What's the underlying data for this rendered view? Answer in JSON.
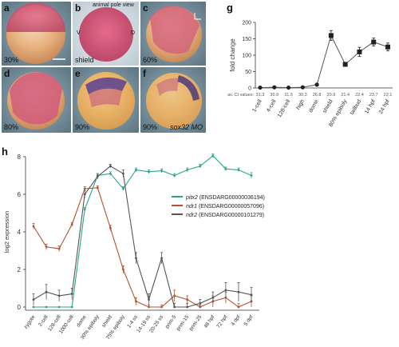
{
  "panels": {
    "a": {
      "letter": "a",
      "caption": "30%"
    },
    "b": {
      "letter": "b",
      "caption": "shield",
      "title": "animal pole view",
      "left_mark": "V",
      "right_mark": "D"
    },
    "c": {
      "letter": "c",
      "caption": "60%"
    },
    "d": {
      "letter": "d",
      "caption": "80%"
    },
    "e": {
      "letter": "e",
      "caption": "90%"
    },
    "f": {
      "letter": "f",
      "caption": "90%",
      "caption2": "sox32 MO"
    },
    "g_letter": "g",
    "h_letter": "h"
  },
  "chart_data": [
    {
      "type": "line",
      "panel": "g",
      "ylabel": "fold change",
      "ylim": [
        0,
        200
      ],
      "yticks": [
        0,
        50,
        100,
        150,
        200
      ],
      "categories": [
        "1-cell",
        "4-cell",
        "128-cell",
        "high",
        "dome",
        "shield",
        "80% epiboly",
        "tailbud",
        "14 hpf",
        "24 hpf"
      ],
      "values": [
        1,
        2,
        1,
        2,
        10,
        160,
        72,
        110,
        140,
        125
      ],
      "errors": [
        1,
        1,
        1,
        1,
        3,
        15,
        4,
        14,
        12,
        12
      ],
      "ct_label": "av. Ct values:",
      "ct_values": [
        "31.3",
        "30.9",
        "31.5",
        "30.3",
        "26.8",
        "20.9",
        "21.4",
        "22.4",
        "23.7",
        "22.1"
      ]
    },
    {
      "type": "line",
      "panel": "h",
      "ylabel": "log2 expression",
      "ylim": [
        0,
        8
      ],
      "yticks": [
        0,
        2,
        4,
        6,
        8
      ],
      "categories": [
        "zygote",
        "2-cell",
        "128-cell",
        "1000-cell",
        "dome",
        "30% epiboly",
        "shield",
        "75% epiboly",
        "1-4 ss",
        "14-19 ss",
        "20-25 ss",
        "prim-5",
        "prim-15",
        "prim-25",
        "48 hpf",
        "72 hpf",
        "4 dpf",
        "5 dpf"
      ],
      "series": [
        {
          "name": "pitx2",
          "id": "(ENSDARG00000036194)",
          "color": "#2aa58c",
          "values": [
            0,
            0,
            0,
            0,
            5.2,
            7.0,
            7.1,
            6.3,
            7.3,
            7.2,
            7.25,
            7.0,
            7.3,
            7.5,
            8.05,
            7.35,
            7.3,
            7.0
          ],
          "errors": [
            0,
            0,
            0,
            0,
            0.1,
            0.1,
            0.1,
            0.1,
            0.1,
            0.1,
            0.1,
            0.1,
            0.1,
            0.1,
            0.1,
            0.1,
            0.1,
            0.15
          ]
        },
        {
          "name": "ndr1",
          "id": "(ENSDARG00000057096)",
          "color": "#b5532f",
          "values": [
            4.3,
            3.2,
            3.1,
            4.4,
            6.3,
            6.35,
            4.2,
            2.0,
            0.3,
            0.0,
            0.0,
            0.6,
            0.4,
            0.0,
            0.3,
            0.5,
            0.0,
            0.3
          ],
          "errors": [
            0.15,
            0.15,
            0.15,
            0.1,
            0.1,
            0.1,
            0.15,
            0.2,
            0.2,
            0.1,
            0.1,
            0.3,
            0.2,
            0.1,
            0.3,
            0.3,
            0.2,
            0.3
          ]
        },
        {
          "name": "ndr2",
          "id": "(ENSDARG00000101279)",
          "color": "#555555",
          "values": [
            0.4,
            0.8,
            0.6,
            0.7,
            6.0,
            6.95,
            7.5,
            7.1,
            2.6,
            0.4,
            2.6,
            0.0,
            0.0,
            0.2,
            0.5,
            0.9,
            0.8,
            0.65
          ],
          "errors": [
            0.3,
            0.4,
            0.3,
            0.3,
            0.2,
            0.15,
            0.1,
            0.2,
            0.3,
            0.3,
            0.3,
            0.2,
            0.2,
            0.2,
            0.3,
            0.4,
            0.5,
            0.4
          ]
        }
      ]
    }
  ]
}
